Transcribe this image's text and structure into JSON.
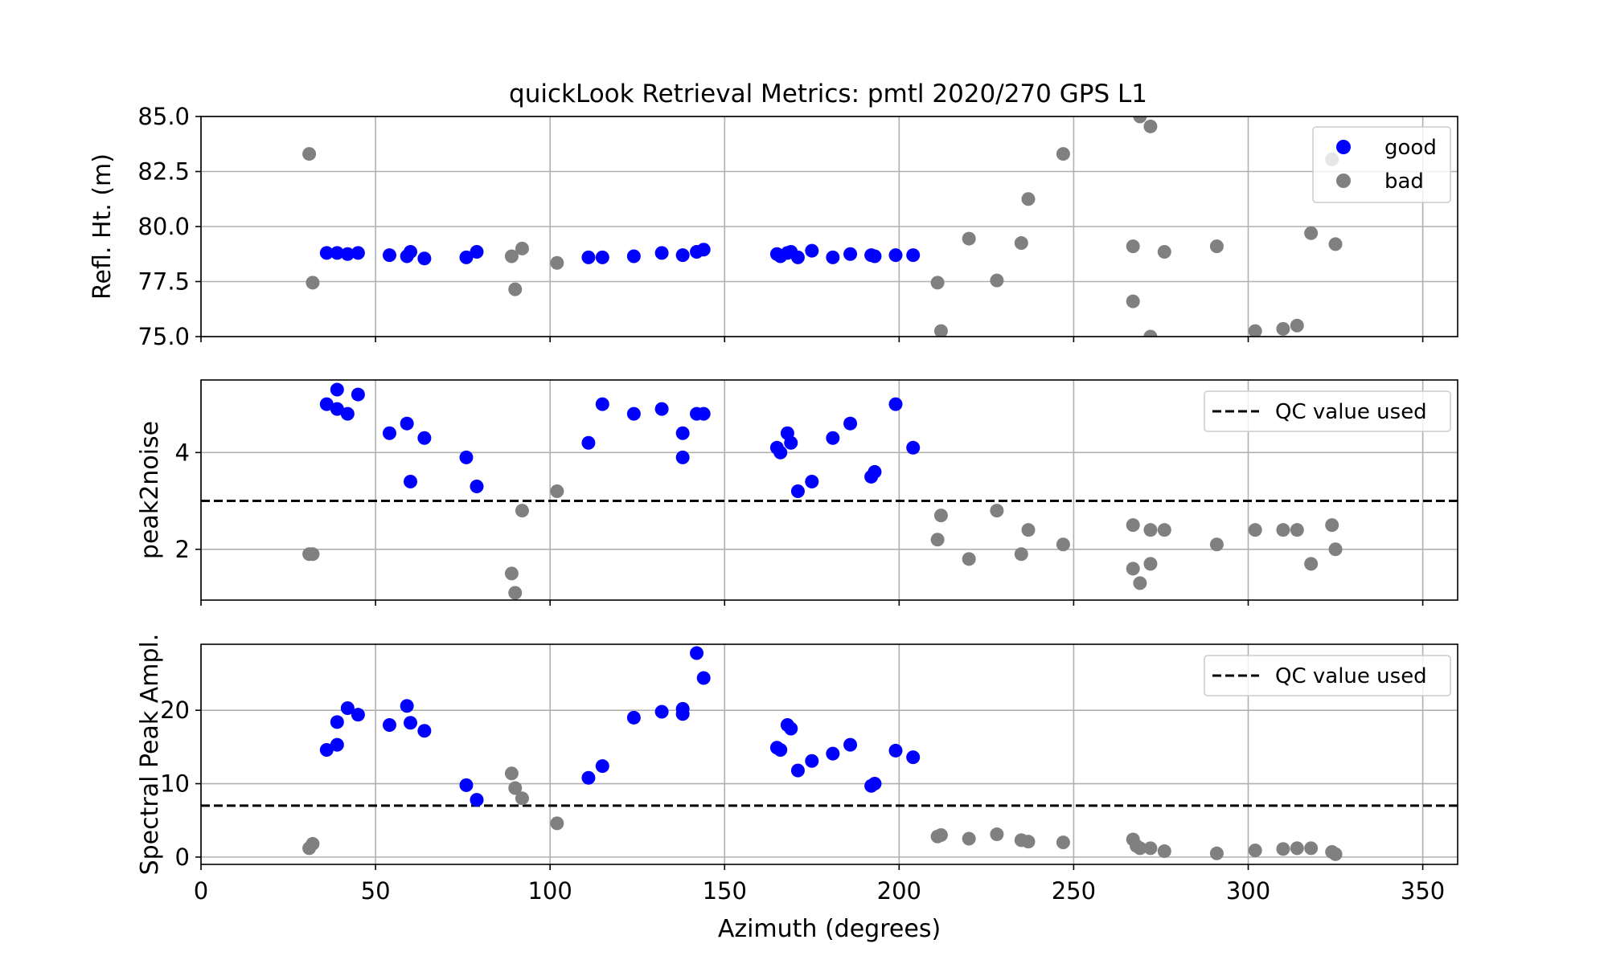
{
  "title": "quickLook Retrieval Metrics: pmtl 2020/270 GPS L1",
  "colors": {
    "good": "#0000ff",
    "bad": "#808080",
    "qc_line": "#000000",
    "grid": "#b0b0b0"
  },
  "chart_data": [
    {
      "type": "scatter",
      "ylabel": "Refl. Ht. (m)",
      "xlim": [
        0,
        360
      ],
      "ylim": [
        75,
        85
      ],
      "xticks": [
        0,
        50,
        100,
        150,
        200,
        250,
        300,
        350
      ],
      "yticks": [
        "75.0",
        "77.5",
        "80.0",
        "82.5",
        "85.0"
      ],
      "ytick_values": [
        75,
        77.5,
        80,
        82.5,
        85
      ],
      "grid": true,
      "legend": {
        "placement": "top-right",
        "entries": [
          "good",
          "bad"
        ]
      },
      "series": [
        {
          "name": "good",
          "color": "#0000ff",
          "points": [
            [
              36,
              78.8
            ],
            [
              39,
              78.8
            ],
            [
              42,
              78.75
            ],
            [
              45,
              78.8
            ],
            [
              54,
              78.7
            ],
            [
              59,
              78.65
            ],
            [
              60,
              78.85
            ],
            [
              64,
              78.55
            ],
            [
              76,
              78.6
            ],
            [
              79,
              78.85
            ],
            [
              111,
              78.6
            ],
            [
              115,
              78.6
            ],
            [
              124,
              78.65
            ],
            [
              132,
              78.8
            ],
            [
              138,
              78.7
            ],
            [
              142,
              78.85
            ],
            [
              144,
              78.95
            ],
            [
              165,
              78.75
            ],
            [
              166,
              78.65
            ],
            [
              168,
              78.8
            ],
            [
              169,
              78.85
            ],
            [
              171,
              78.6
            ],
            [
              175,
              78.9
            ],
            [
              181,
              78.6
            ],
            [
              186,
              78.75
            ],
            [
              192,
              78.7
            ],
            [
              193,
              78.65
            ],
            [
              199,
              78.7
            ],
            [
              204,
              78.7
            ]
          ]
        },
        {
          "name": "bad",
          "color": "#808080",
          "points": [
            [
              31,
              83.3
            ],
            [
              32,
              77.45
            ],
            [
              89,
              78.65
            ],
            [
              90,
              77.15
            ],
            [
              92,
              79.0
            ],
            [
              102,
              78.35
            ],
            [
              211,
              77.45
            ],
            [
              212,
              75.25
            ],
            [
              220,
              79.45
            ],
            [
              228,
              77.55
            ],
            [
              235,
              79.25
            ],
            [
              237,
              81.25
            ],
            [
              247,
              83.3
            ],
            [
              267,
              79.1
            ],
            [
              267,
              76.6
            ],
            [
              269,
              85.0
            ],
            [
              272,
              84.55
            ],
            [
              272,
              75.0
            ],
            [
              276,
              78.85
            ],
            [
              291,
              79.1
            ],
            [
              302,
              75.25
            ],
            [
              310,
              75.35
            ],
            [
              314,
              75.5
            ],
            [
              318,
              79.7
            ],
            [
              324,
              83.05
            ],
            [
              325,
              79.2
            ]
          ]
        }
      ]
    },
    {
      "type": "scatter",
      "ylabel": "peak2noise",
      "xlim": [
        0,
        360
      ],
      "ylim": [
        0.95,
        5.5
      ],
      "xticks": [
        0,
        50,
        100,
        150,
        200,
        250,
        300,
        350
      ],
      "yticks": [
        "2",
        "4"
      ],
      "ytick_values": [
        2,
        4
      ],
      "grid": true,
      "qc_value": 3.0,
      "legend": {
        "placement": "top-right",
        "entries": [
          "QC value used"
        ]
      },
      "series": [
        {
          "name": "good",
          "color": "#0000ff",
          "points": [
            [
              36,
              5.0
            ],
            [
              39,
              4.9
            ],
            [
              39,
              5.3
            ],
            [
              42,
              4.8
            ],
            [
              45,
              5.2
            ],
            [
              54,
              4.4
            ],
            [
              59,
              4.6
            ],
            [
              60,
              3.4
            ],
            [
              64,
              4.3
            ],
            [
              76,
              3.9
            ],
            [
              79,
              3.3
            ],
            [
              111,
              4.2
            ],
            [
              115,
              5.0
            ],
            [
              124,
              4.8
            ],
            [
              132,
              4.9
            ],
            [
              138,
              4.4
            ],
            [
              138,
              3.9
            ],
            [
              142,
              4.8
            ],
            [
              144,
              4.8
            ],
            [
              165,
              4.1
            ],
            [
              166,
              4.0
            ],
            [
              168,
              4.4
            ],
            [
              169,
              4.2
            ],
            [
              171,
              3.2
            ],
            [
              175,
              3.4
            ],
            [
              181,
              4.3
            ],
            [
              186,
              4.6
            ],
            [
              192,
              3.5
            ],
            [
              193,
              3.6
            ],
            [
              199,
              5.0
            ],
            [
              204,
              4.1
            ]
          ]
        },
        {
          "name": "bad",
          "color": "#808080",
          "points": [
            [
              31,
              1.9
            ],
            [
              32,
              1.9
            ],
            [
              89,
              1.5
            ],
            [
              90,
              1.1
            ],
            [
              92,
              2.8
            ],
            [
              102,
              3.2
            ],
            [
              211,
              2.2
            ],
            [
              212,
              2.7
            ],
            [
              220,
              1.8
            ],
            [
              228,
              2.8
            ],
            [
              235,
              1.9
            ],
            [
              237,
              2.4
            ],
            [
              247,
              2.1
            ],
            [
              267,
              2.5
            ],
            [
              267,
              1.6
            ],
            [
              269,
              1.3
            ],
            [
              272,
              2.4
            ],
            [
              272,
              1.7
            ],
            [
              276,
              2.4
            ],
            [
              291,
              2.1
            ],
            [
              302,
              2.4
            ],
            [
              310,
              2.4
            ],
            [
              314,
              2.4
            ],
            [
              318,
              1.7
            ],
            [
              324,
              2.5
            ],
            [
              325,
              2.0
            ]
          ]
        }
      ]
    },
    {
      "type": "scatter",
      "ylabel": "Spectral Peak Ampl.",
      "xlabel": "Azimuth (degrees)",
      "xlim": [
        0,
        360
      ],
      "ylim": [
        -1,
        29
      ],
      "xticks": [
        0,
        50,
        100,
        150,
        200,
        250,
        300,
        350
      ],
      "yticks": [
        "0",
        "10",
        "20"
      ],
      "ytick_values": [
        0,
        10,
        20
      ],
      "grid": true,
      "qc_value": 7.0,
      "legend": {
        "placement": "top-right",
        "entries": [
          "QC value used"
        ]
      },
      "series": [
        {
          "name": "good",
          "color": "#0000ff",
          "points": [
            [
              36,
              14.6
            ],
            [
              39,
              15.3
            ],
            [
              39,
              18.4
            ],
            [
              42,
              20.3
            ],
            [
              45,
              19.4
            ],
            [
              54,
              18.0
            ],
            [
              59,
              20.6
            ],
            [
              60,
              18.3
            ],
            [
              64,
              17.2
            ],
            [
              76,
              9.8
            ],
            [
              79,
              7.8
            ],
            [
              111,
              10.8
            ],
            [
              115,
              12.4
            ],
            [
              124,
              19.0
            ],
            [
              132,
              19.8
            ],
            [
              138,
              20.2
            ],
            [
              138,
              19.5
            ],
            [
              142,
              27.8
            ],
            [
              144,
              24.4
            ],
            [
              165,
              14.9
            ],
            [
              166,
              14.6
            ],
            [
              168,
              18.0
            ],
            [
              169,
              17.5
            ],
            [
              171,
              11.8
            ],
            [
              175,
              13.1
            ],
            [
              181,
              14.1
            ],
            [
              186,
              15.3
            ],
            [
              192,
              9.7
            ],
            [
              193,
              10.0
            ],
            [
              199,
              14.5
            ],
            [
              204,
              13.6
            ]
          ]
        },
        {
          "name": "bad",
          "color": "#808080",
          "points": [
            [
              31,
              1.2
            ],
            [
              32,
              1.8
            ],
            [
              89,
              11.4
            ],
            [
              90,
              9.4
            ],
            [
              92,
              8.0
            ],
            [
              102,
              4.6
            ],
            [
              211,
              2.8
            ],
            [
              212,
              3.0
            ],
            [
              220,
              2.5
            ],
            [
              228,
              3.1
            ],
            [
              235,
              2.3
            ],
            [
              237,
              2.1
            ],
            [
              247,
              2.0
            ],
            [
              267,
              2.4
            ],
            [
              268,
              1.5
            ],
            [
              269,
              1.2
            ],
            [
              272,
              1.2
            ],
            [
              276,
              0.8
            ],
            [
              291,
              0.5
            ],
            [
              302,
              0.9
            ],
            [
              310,
              1.1
            ],
            [
              314,
              1.2
            ],
            [
              318,
              1.2
            ],
            [
              324,
              0.7
            ],
            [
              325,
              0.4
            ]
          ]
        }
      ]
    }
  ]
}
